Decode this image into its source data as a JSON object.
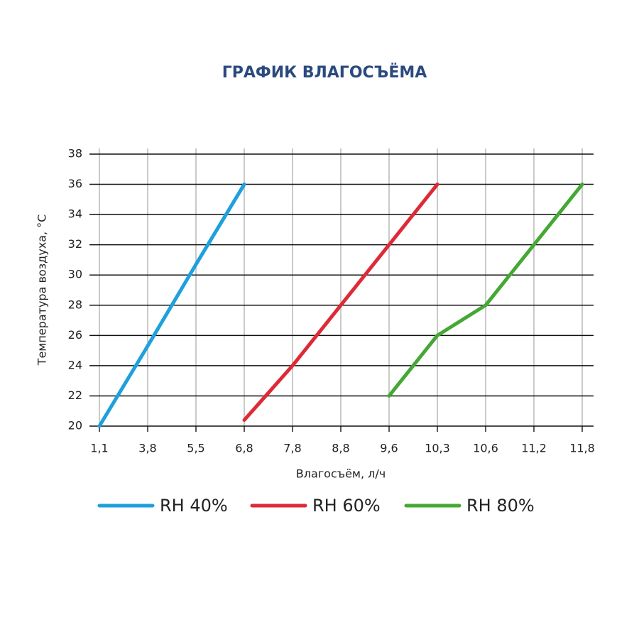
{
  "chart_data": {
    "type": "line",
    "title": "ГРАФИК ВЛАГОСЪЁМА",
    "x_label": "Влагосъём, л/ч",
    "y_label": "Температура воздуха, °С",
    "categories": [
      "1,1",
      "3,8",
      "5,5",
      "6,8",
      "7,8",
      "8,8",
      "9,6",
      "10,3",
      "10,6",
      "11,2",
      "11,8"
    ],
    "series": [
      {
        "name": "RH 40%",
        "color": "#1ea0dc",
        "values": [
          20,
          25.3,
          30.7,
          36,
          null,
          null,
          null,
          null,
          null,
          null,
          null
        ]
      },
      {
        "name": "RH 60%",
        "color": "#dd2a36",
        "values": [
          null,
          null,
          null,
          20.4,
          24,
          28,
          32,
          36,
          null,
          null,
          null
        ]
      },
      {
        "name": "RH 80%",
        "color": "#45a834",
        "values": [
          null,
          null,
          null,
          null,
          null,
          null,
          22,
          26,
          28,
          32,
          36
        ]
      }
    ],
    "ylim": [
      20,
      38
    ],
    "yticks": [
      20,
      22,
      24,
      26,
      28,
      30,
      32,
      34,
      36,
      38
    ],
    "grid": true
  }
}
